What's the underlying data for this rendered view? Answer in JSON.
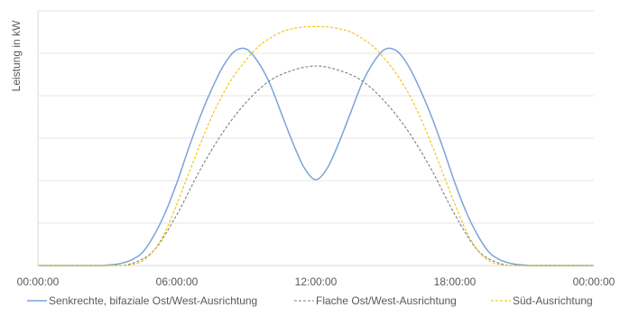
{
  "chart_data": {
    "type": "line",
    "ylabel": "Leistung in kW",
    "xlabel": "",
    "x_ticks": [
      "00:00:00",
      "06:00:00",
      "12:00:00",
      "18:00:00",
      "00:00:00"
    ],
    "x_unit": "hours",
    "xlim": [
      0,
      24
    ],
    "ylim": [
      0,
      6
    ],
    "y_tick_labels_shown": false,
    "grid": "horizontal",
    "legend_position": "bottom",
    "colors": {
      "grid": "#e6e6e6",
      "axis": "#d9d9d9",
      "text": "#595959"
    },
    "series": [
      {
        "name": "Senkrechte, bifaziale Ost/West-Ausrichtung",
        "color": "#7ba3d8",
        "dash": "solid",
        "x": [
          0,
          2.5,
          3,
          3.5,
          4,
          4.5,
          5,
          5.5,
          6,
          6.5,
          7,
          7.5,
          8,
          8.5,
          9,
          9.5,
          10,
          10.5,
          11,
          11.5,
          12,
          12.5,
          13,
          13.5,
          14,
          14.5,
          15,
          15.5,
          16,
          16.5,
          17,
          17.5,
          18,
          18.5,
          19,
          19.5,
          20,
          20.5,
          21,
          21.5,
          24
        ],
        "values": [
          0,
          0,
          0.01,
          0.04,
          0.12,
          0.3,
          0.7,
          1.25,
          1.95,
          2.75,
          3.5,
          4.15,
          4.7,
          5.05,
          5.1,
          4.8,
          4.3,
          3.6,
          2.9,
          2.3,
          2.02,
          2.3,
          2.9,
          3.6,
          4.3,
          4.8,
          5.1,
          5.05,
          4.7,
          4.15,
          3.5,
          2.75,
          1.95,
          1.25,
          0.7,
          0.3,
          0.12,
          0.04,
          0.01,
          0,
          0
        ]
      },
      {
        "name": "Flache Ost/West-Ausrichtung",
        "color": "#7f7f7f",
        "dash": "dashed",
        "x": [
          0,
          3,
          4,
          5,
          6,
          7,
          8,
          9,
          10,
          11,
          12,
          13,
          14,
          15,
          16,
          17,
          18,
          19,
          20,
          21,
          24
        ],
        "values": [
          0,
          0,
          0.04,
          0.35,
          1.2,
          2.25,
          3.15,
          3.85,
          4.35,
          4.6,
          4.7,
          4.6,
          4.35,
          3.85,
          3.15,
          2.25,
          1.2,
          0.35,
          0.04,
          0,
          0
        ]
      },
      {
        "name": "Süd-Ausrichtung",
        "color": "#f2c200",
        "dash": "dashed",
        "x": [
          0,
          3.5,
          4,
          4.5,
          5,
          5.5,
          6,
          6.5,
          7,
          7.5,
          8,
          8.5,
          9,
          9.5,
          10,
          10.5,
          11,
          11.5,
          12,
          12.5,
          13,
          13.5,
          14,
          14.5,
          15,
          15.5,
          16,
          16.5,
          17,
          17.5,
          18,
          18.5,
          19,
          19.5,
          20,
          20.5,
          24
        ],
        "values": [
          0,
          0,
          0.02,
          0.1,
          0.35,
          0.8,
          1.45,
          2.15,
          2.85,
          3.5,
          4.05,
          4.5,
          4.85,
          5.15,
          5.35,
          5.5,
          5.58,
          5.62,
          5.63,
          5.62,
          5.58,
          5.5,
          5.35,
          5.15,
          4.85,
          4.5,
          4.05,
          3.5,
          2.85,
          2.15,
          1.45,
          0.8,
          0.35,
          0.1,
          0.02,
          0,
          0
        ]
      }
    ]
  }
}
